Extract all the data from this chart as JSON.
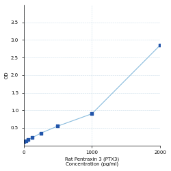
{
  "x_data": [
    0,
    31.25,
    62.5,
    125,
    250,
    500,
    1000,
    2000
  ],
  "y_data": [
    0.1,
    0.13,
    0.16,
    0.22,
    0.35,
    0.55,
    0.9,
    2.85
  ],
  "line_color": "#88bbdd",
  "marker_color": "#2255aa",
  "xlabel_line1": "Rat Pentraxin 3 (PTX3)",
  "xlabel_line2": "Concentration (pg/ml)",
  "ylabel": "OD",
  "xlim": [
    0,
    2000
  ],
  "ylim": [
    0,
    4.0
  ],
  "yticks": [
    0.5,
    1.0,
    1.5,
    2.0,
    2.5,
    3.0,
    3.5
  ],
  "xticks": [
    0,
    1000,
    2000
  ],
  "background_color": "#ffffff",
  "grid_color": "#c8dce8",
  "font_size_label": 5,
  "font_size_tick": 5
}
